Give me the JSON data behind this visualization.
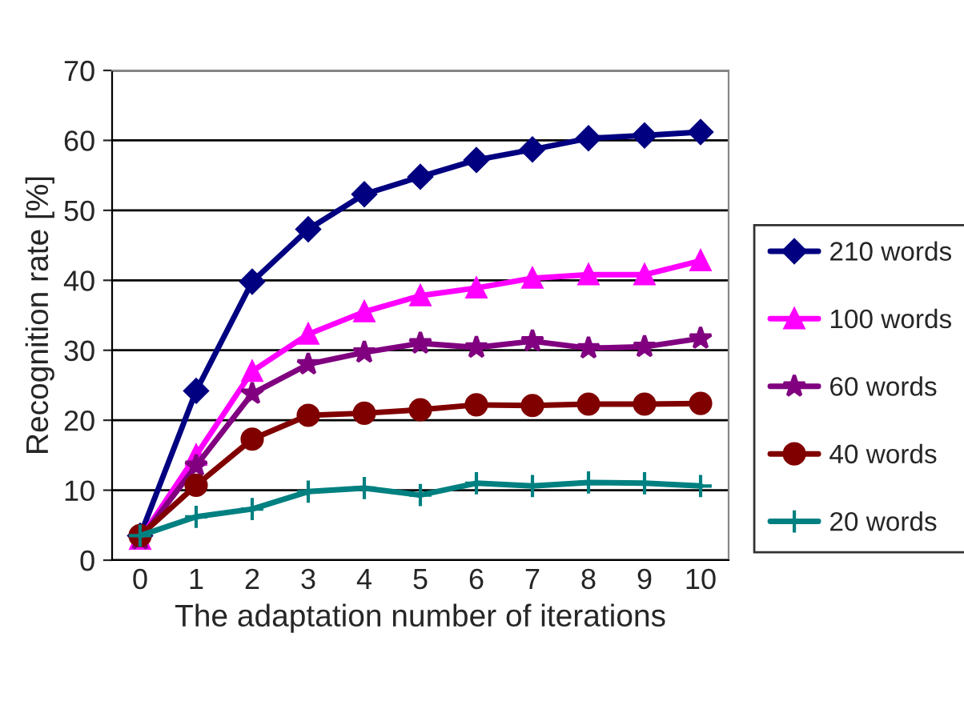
{
  "chart_data": {
    "type": "line",
    "xlabel": "The adaptation number of iterations",
    "ylabel": "Recognition rate [%]",
    "categories": [
      "0",
      "1",
      "2",
      "3",
      "4",
      "5",
      "6",
      "7",
      "8",
      "9",
      "10"
    ],
    "ylim": [
      0,
      70
    ],
    "yticks": [
      0,
      10,
      20,
      30,
      40,
      50,
      60,
      70
    ],
    "grid": "y",
    "legend": "right",
    "series": [
      {
        "name": "210 words",
        "color": "#000080",
        "marker": "diamond",
        "values": [
          3.5,
          24.2,
          39.8,
          47.3,
          52.3,
          54.8,
          57.2,
          58.7,
          60.3,
          60.7,
          61.2
        ]
      },
      {
        "name": "100 words",
        "color": "#ff00ff",
        "marker": "triangle",
        "values": [
          3,
          15,
          27,
          32.3,
          35.5,
          37.8,
          38.9,
          40.3,
          40.8,
          40.8,
          42.8
        ]
      },
      {
        "name": "60 words",
        "color": "#800080",
        "marker": "star",
        "values": [
          3,
          13.5,
          23.8,
          28,
          29.7,
          31,
          30.4,
          31.3,
          30.3,
          30.5,
          31.7
        ]
      },
      {
        "name": "40 words",
        "color": "#800000",
        "marker": "circle",
        "values": [
          3.5,
          10.7,
          17.3,
          20.7,
          21,
          21.5,
          22.2,
          22.1,
          22.3,
          22.3,
          22.4
        ]
      },
      {
        "name": "20 words",
        "color": "#008080",
        "marker": "cross",
        "values": [
          3.5,
          6.2,
          7.3,
          9.8,
          10.3,
          9.3,
          11,
          10.6,
          11.1,
          11,
          10.6
        ]
      }
    ]
  }
}
